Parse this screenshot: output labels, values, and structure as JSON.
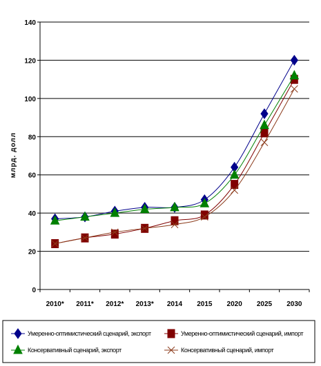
{
  "chart_data": {
    "type": "line",
    "title": "",
    "xlabel": "",
    "ylabel": "млрд. долл",
    "categories": [
      "2010*",
      "2011*",
      "2012*",
      "2013*",
      "2014",
      "2015",
      "2020",
      "2025",
      "2030"
    ],
    "ylim": [
      0,
      140
    ],
    "yticks": [
      0,
      20,
      40,
      60,
      80,
      100,
      120,
      140
    ],
    "grid": "horizontal",
    "legend_position": "bottom",
    "series": [
      {
        "name": "Умеренно-оптимистический сценарий, экспорт",
        "values": [
          37,
          38,
          41,
          43,
          43,
          47,
          64,
          92,
          120
        ],
        "color": "#00008b",
        "marker": "diamond"
      },
      {
        "name": "Умеренно-оптимистический сценарий, импорт",
        "values": [
          24,
          27,
          29,
          32,
          36,
          39,
          55,
          82,
          110
        ],
        "color": "#800000",
        "marker": "square"
      },
      {
        "name": "Консервативный сценарий, экспорт",
        "values": [
          36,
          38,
          40,
          42,
          43,
          45,
          60,
          86,
          112
        ],
        "color": "#008000",
        "marker": "triangle"
      },
      {
        "name": "Консервативный сценарий, импорт",
        "values": [
          24,
          27,
          30,
          32,
          34,
          38,
          52,
          77,
          105
        ],
        "color": "#8b3a1a",
        "marker": "x"
      }
    ]
  }
}
